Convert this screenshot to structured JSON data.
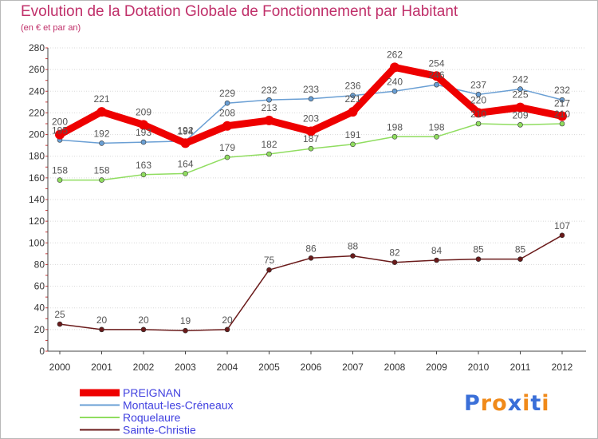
{
  "title": "Evolution de la Dotation Globale de Fonctionnement par Habitant",
  "subtitle": "(en € et par an)",
  "logo": {
    "letters": [
      "P",
      "r",
      "o",
      "x",
      "i",
      "t",
      "i"
    ],
    "colors": [
      "#3a6fd8",
      "#f08a1a",
      "#f08a1a",
      "#3a6fd8",
      "#f08a1a",
      "#3a6fd8",
      "#f08a1a"
    ]
  },
  "chart_data": {
    "type": "line",
    "x": [
      "2000",
      "2001",
      "2002",
      "2003",
      "2004",
      "2005",
      "2006",
      "2007",
      "2008",
      "2009",
      "2010",
      "2011",
      "2012"
    ],
    "ylim": [
      0,
      280
    ],
    "yticks": [
      0,
      20,
      40,
      60,
      80,
      100,
      120,
      140,
      160,
      180,
      200,
      220,
      240,
      260,
      280
    ],
    "grid": "horizontal",
    "legend_position": "bottom-left",
    "series": [
      {
        "name": "PREIGNAN",
        "color": "#ee0000",
        "values": [
          200,
          221,
          209,
          192,
          208,
          213,
          203,
          221,
          262,
          254,
          220,
          225,
          217
        ]
      },
      {
        "name": "Montaut-les-Créneaux",
        "color": "#6a9fd4",
        "values": [
          195,
          192,
          193,
          194,
          229,
          232,
          233,
          236,
          240,
          246,
          237,
          242,
          232
        ]
      },
      {
        "name": "Roquelaure",
        "color": "#90dd60",
        "values": [
          158,
          158,
          163,
          164,
          179,
          182,
          187,
          191,
          198,
          198,
          210,
          209,
          210
        ]
      },
      {
        "name": "Sainte-Christie",
        "color": "#6a1a1a",
        "values": [
          25,
          20,
          20,
          19,
          20,
          75,
          86,
          88,
          82,
          84,
          85,
          85,
          107
        ]
      }
    ]
  }
}
